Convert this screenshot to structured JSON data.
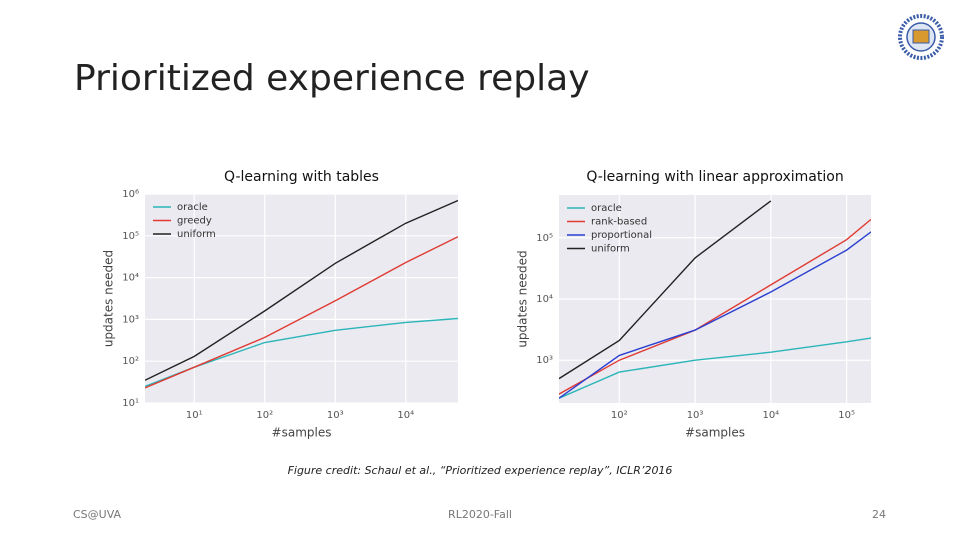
{
  "slide_title": "Prioritized experience replay",
  "caption": "Figure credit: Schaul et al., “Prioritized experience replay”, ICLR’2016",
  "footer": {
    "left": "CS@UVA",
    "center": "RL2020-Fall",
    "page": "24"
  },
  "chart_data": [
    {
      "type": "line",
      "title": "Q-learning with tables",
      "x_label": "#samples",
      "y_label": "updates needed",
      "x_scale": "log",
      "y_scale": "log",
      "grid": true,
      "legend": "top-left",
      "xlim": [
        2,
        55000
      ],
      "ylim": [
        10,
        1000000
      ],
      "xticks": [
        {
          "value": 10,
          "label": "10¹"
        },
        {
          "value": 100,
          "label": "10²"
        },
        {
          "value": 1000,
          "label": "10³"
        },
        {
          "value": 10000,
          "label": "10⁴"
        }
      ],
      "yticks": [
        {
          "value": 10,
          "label": "10¹"
        },
        {
          "value": 100,
          "label": "10²"
        },
        {
          "value": 1000,
          "label": "10³"
        },
        {
          "value": 10000,
          "label": "10⁴"
        },
        {
          "value": 100000,
          "label": "10⁵"
        },
        {
          "value": 1000000,
          "label": "10⁶"
        }
      ],
      "x": [
        2,
        10,
        100,
        1000,
        10000,
        55000
      ],
      "series": [
        {
          "name": "oracle",
          "color": "#2bb5b8",
          "values": [
            25,
            72,
            280,
            550,
            850,
            1050
          ]
        },
        {
          "name": "greedy",
          "color": "#e03a33",
          "values": [
            23,
            72,
            370,
            2800,
            23000,
            95000
          ]
        },
        {
          "name": "uniform",
          "color": "#222222",
          "values": [
            35,
            130,
            1600,
            22000,
            200000,
            700000
          ]
        }
      ]
    },
    {
      "type": "line",
      "title": "Q-learning with linear approximation",
      "x_label": "#samples",
      "y_label": "updates needed",
      "x_scale": "log",
      "y_scale": "log",
      "grid": true,
      "legend": "top-left",
      "xlim": [
        16,
        210000
      ],
      "ylim": [
        200,
        500000
      ],
      "xticks": [
        {
          "value": 100,
          "label": "10²"
        },
        {
          "value": 1000,
          "label": "10³"
        },
        {
          "value": 10000,
          "label": "10⁴"
        },
        {
          "value": 100000,
          "label": "10⁵"
        }
      ],
      "yticks": [
        {
          "value": 1000,
          "label": "10³"
        },
        {
          "value": 10000,
          "label": "10⁴"
        },
        {
          "value": 100000,
          "label": "10⁵"
        }
      ],
      "x": [
        16,
        100,
        1000,
        10000,
        100000,
        210000
      ],
      "series": [
        {
          "name": "oracle",
          "color": "#2bb5b8",
          "values": [
            240,
            640,
            1000,
            1350,
            2000,
            2300
          ]
        },
        {
          "name": "rank-based",
          "color": "#e03a33",
          "values": [
            280,
            1000,
            3100,
            17000,
            93000,
            200000
          ]
        },
        {
          "name": "proportional",
          "color": "#2b3fd1",
          "values": [
            240,
            1200,
            3100,
            13000,
            63000,
            125000
          ]
        },
        {
          "name": "uniform",
          "color": "#222222",
          "values": [
            500,
            2100,
            47000,
            400000,
            null,
            null
          ]
        }
      ]
    }
  ]
}
